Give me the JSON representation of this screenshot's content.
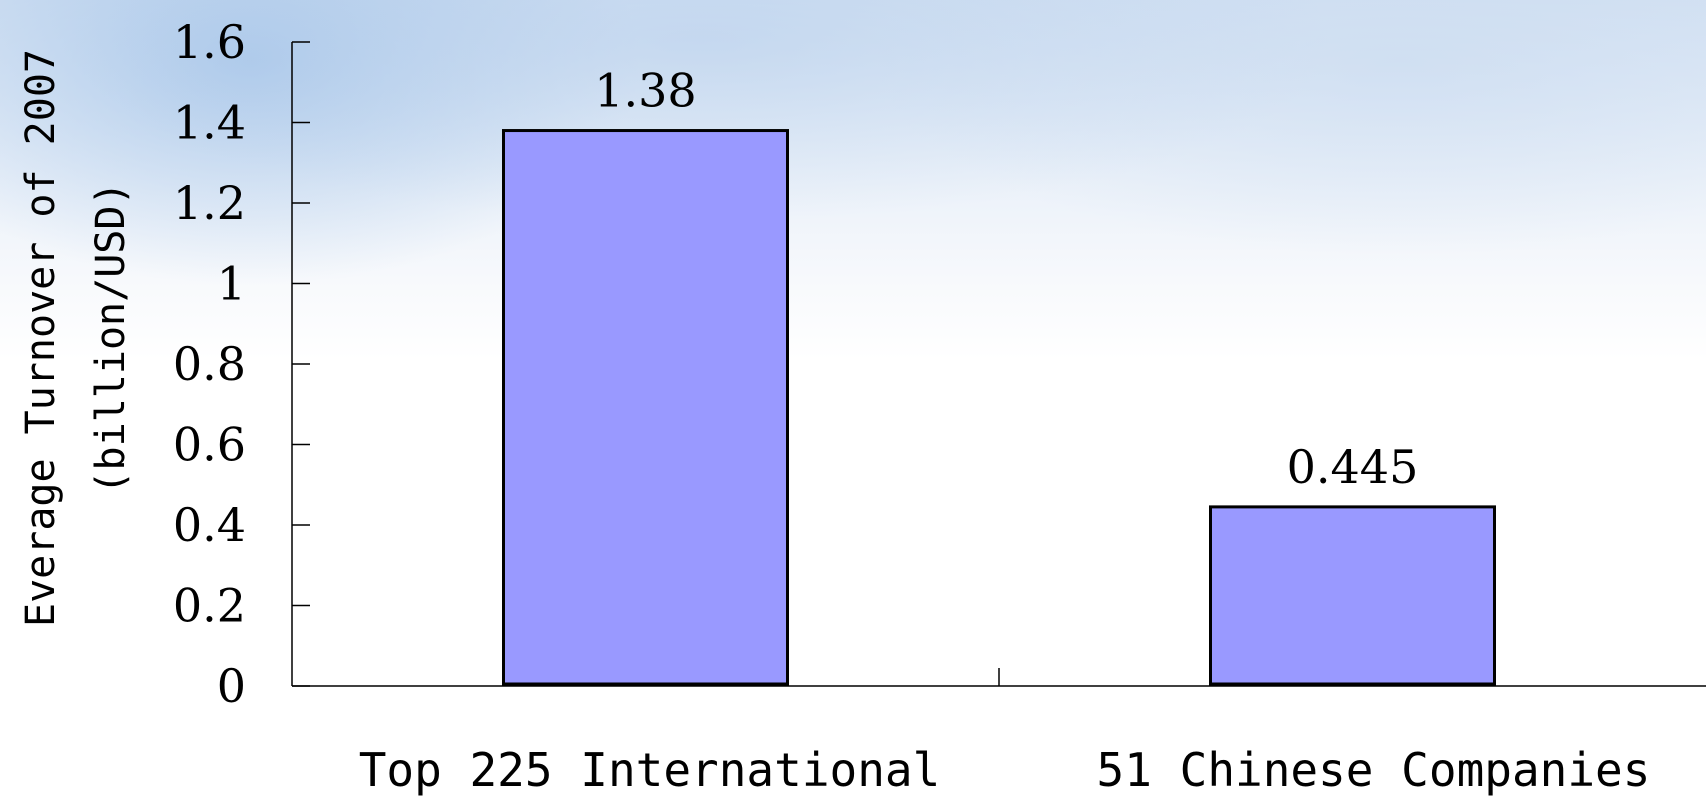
{
  "chart_data": {
    "type": "bar",
    "categories": [
      "Top 225 International",
      "51 Chinese Companies"
    ],
    "values": [
      1.38,
      0.445
    ],
    "value_labels": [
      "1.38",
      "0.445"
    ],
    "ylabel_line1": "Everage Turnover of 2007",
    "ylabel_line2": "(billion/USD)",
    "ylim": [
      0,
      1.6
    ],
    "yticks": [
      "0",
      "0.2",
      "0.4",
      "0.6",
      "0.8",
      "1",
      "1.2",
      "1.4",
      "1.6"
    ],
    "grid": false,
    "legend": "none",
    "bar_color": "#9999ff",
    "bar_edge_color": "#000000"
  }
}
